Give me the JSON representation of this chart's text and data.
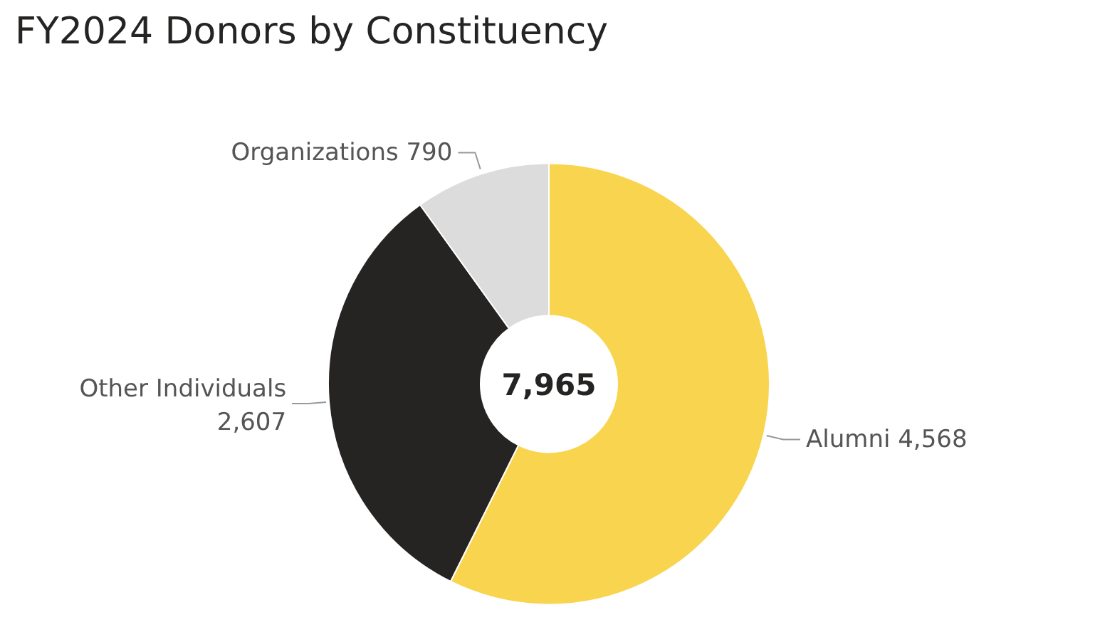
{
  "chart_data": {
    "type": "donut",
    "title": "FY2024 Donors by Constituency",
    "categories": [
      "Alumni",
      "Other Individuals",
      "Organizations"
    ],
    "values": [
      4568,
      2607,
      790
    ],
    "colors": [
      "#f9d44f",
      "#252423",
      "#dcdcdc"
    ],
    "value_labels": [
      "4,568",
      "2,607",
      "790"
    ],
    "annotations": [
      "7,965"
    ],
    "legend": false
  }
}
